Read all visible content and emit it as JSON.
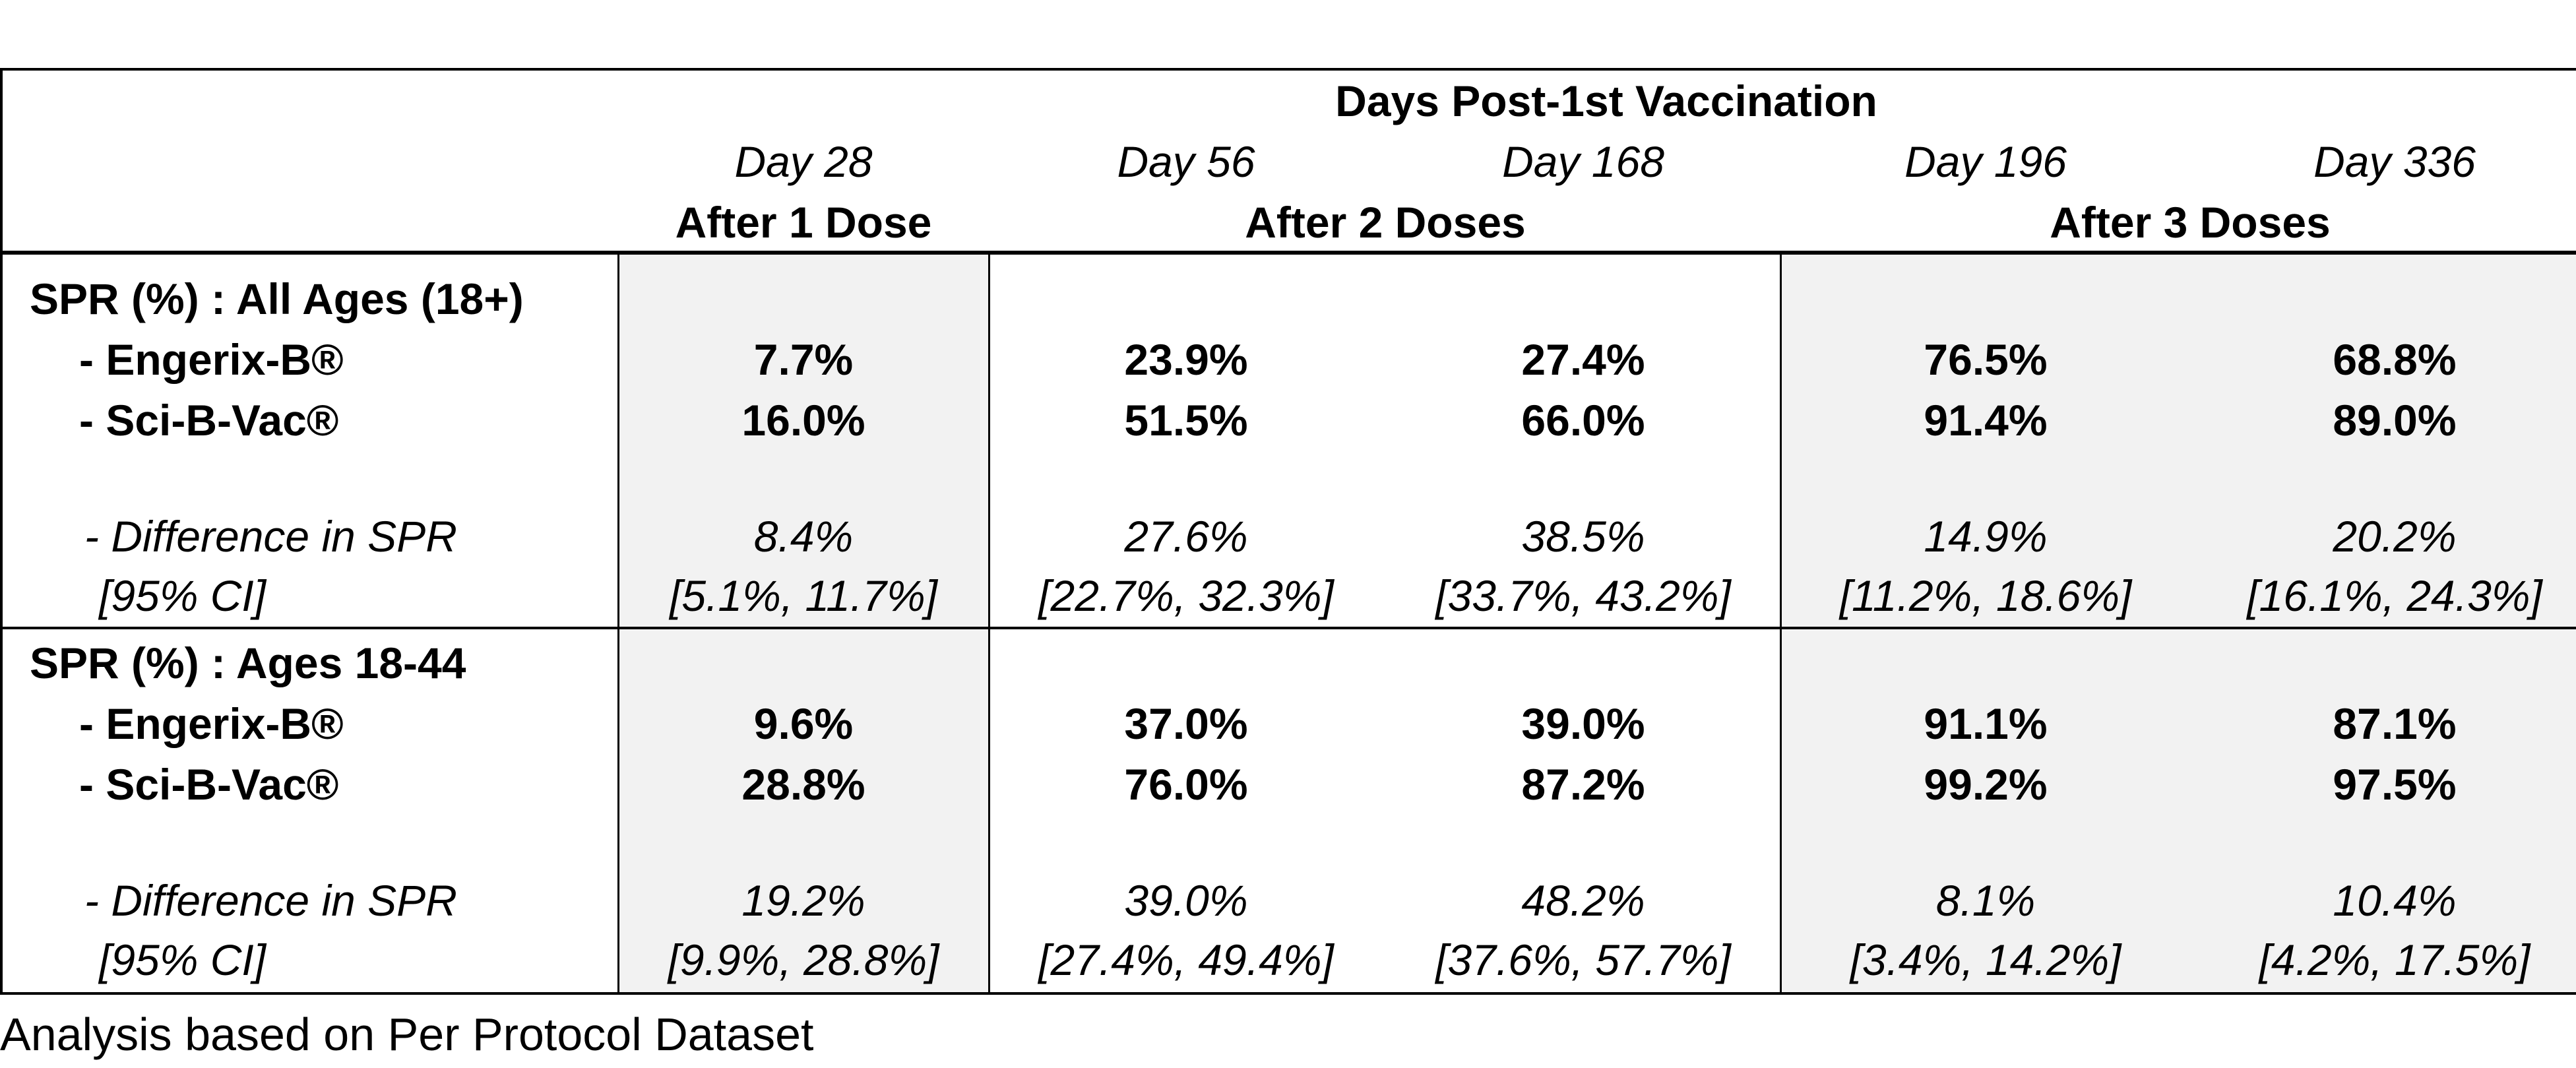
{
  "header": {
    "super_title": "Days Post-1st Vaccination",
    "columns": [
      {
        "day": "Day 28",
        "group": "After 1 Dose"
      },
      {
        "day": "Day 56",
        "group": "After 2 Doses"
      },
      {
        "day": "Day 168",
        "group": ""
      },
      {
        "day": "Day 196",
        "group": "After 3 Doses"
      },
      {
        "day": "Day 336",
        "group": ""
      }
    ]
  },
  "sections": [
    {
      "title": "SPR (%) : All Ages (18+)",
      "rows": [
        {
          "label": "- Engerix-B®",
          "values": [
            "7.7%",
            "23.9%",
            "27.4%",
            "76.5%",
            "68.8%"
          ]
        },
        {
          "label": "- Sci-B-Vac®",
          "values": [
            "16.0%",
            "51.5%",
            "66.0%",
            "91.4%",
            "89.0%"
          ]
        }
      ],
      "difference_label": "- Difference in SPR",
      "ci_label": "[95% CI]",
      "differences": [
        "8.4%",
        "27.6%",
        "38.5%",
        "14.9%",
        "20.2%"
      ],
      "cis": [
        "[5.1%, 11.7%]",
        "[22.7%, 32.3%]",
        "[33.7%, 43.2%]",
        "[11.2%, 18.6%]",
        "[16.1%, 24.3%]"
      ]
    },
    {
      "title": "SPR (%) : Ages 18-44",
      "rows": [
        {
          "label": "- Engerix-B®",
          "values": [
            "9.6%",
            "37.0%",
            "39.0%",
            "91.1%",
            "87.1%"
          ]
        },
        {
          "label": "- Sci-B-Vac®",
          "values": [
            "28.8%",
            "76.0%",
            "87.2%",
            "99.2%",
            "97.5%"
          ]
        }
      ],
      "difference_label": "- Difference in SPR",
      "ci_label": "[95% CI]",
      "differences": [
        "19.2%",
        "39.0%",
        "48.2%",
        "8.1%",
        "10.4%"
      ],
      "cis": [
        "[9.9%, 28.8%]",
        "[27.4%, 49.4%]",
        "[37.6%, 57.7%]",
        "[3.4%, 14.2%]",
        "[4.2%, 17.5%]"
      ]
    }
  ],
  "footnote": "Analysis based on Per Protocol Dataset"
}
